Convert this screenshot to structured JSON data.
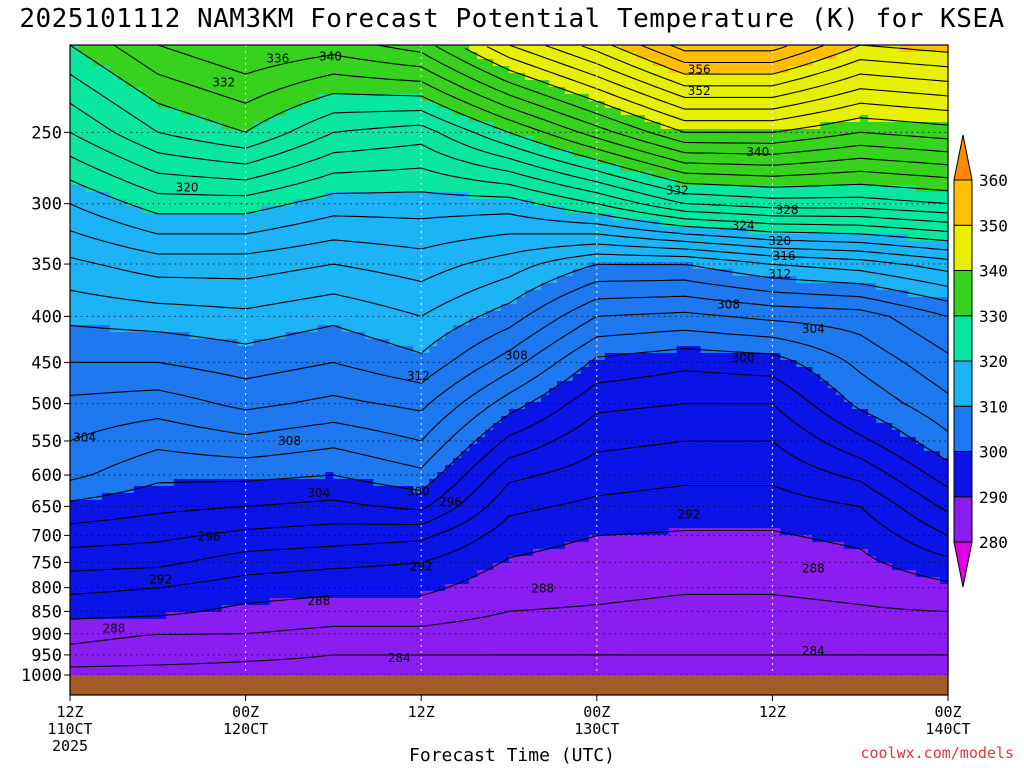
{
  "chart_data": {
    "type": "heatmap",
    "title": "2025101112 NAM3KM Forecast Potential Temperature (K) for KSEA",
    "xlabel": "Forecast Time (UTC)",
    "ylabel": "",
    "y_axis": {
      "scale": "log",
      "reversed": true,
      "range": [
        200,
        1000
      ],
      "ticks": [
        250,
        300,
        350,
        400,
        450,
        500,
        550,
        600,
        650,
        700,
        750,
        800,
        850,
        900,
        950,
        1000
      ]
    },
    "x_axis": {
      "range_hours": [
        0,
        60
      ],
      "ticks": [
        {
          "hour": 0,
          "line1": "12Z",
          "line2": "110CT",
          "line3": "2025"
        },
        {
          "hour": 12,
          "line1": "00Z",
          "line2": "120CT",
          "line3": ""
        },
        {
          "hour": 24,
          "line1": "12Z",
          "line2": "",
          "line3": ""
        },
        {
          "hour": 36,
          "line1": "00Z",
          "line2": "130CT",
          "line3": ""
        },
        {
          "hour": 48,
          "line1": "12Z",
          "line2": "",
          "line3": ""
        },
        {
          "hour": 60,
          "line1": "00Z",
          "line2": "140CT",
          "line3": ""
        }
      ]
    },
    "grid": true,
    "colorbar": {
      "levels": [
        280,
        290,
        300,
        310,
        320,
        330,
        340,
        350,
        360
      ],
      "bands": [
        {
          "min": 270,
          "max": 280,
          "color": "#e000e8"
        },
        {
          "min": 280,
          "max": 290,
          "color": "#8a1df0"
        },
        {
          "min": 290,
          "max": 300,
          "color": "#0a14e6"
        },
        {
          "min": 300,
          "max": 310,
          "color": "#1e78f0"
        },
        {
          "min": 310,
          "max": 320,
          "color": "#1cb4f4"
        },
        {
          "min": 320,
          "max": 330,
          "color": "#08e6a0"
        },
        {
          "min": 330,
          "max": 340,
          "color": "#36d21e"
        },
        {
          "min": 340,
          "max": 350,
          "color": "#e8f000"
        },
        {
          "min": 350,
          "max": 360,
          "color": "#ffbf00"
        },
        {
          "min": 360,
          "max": 370,
          "color": "#ff8c00"
        }
      ]
    },
    "contour_interval": 2,
    "profiles": [
      {
        "hour": 0,
        "p": [
          1000,
          950,
          900,
          850,
          800,
          750,
          700,
          650,
          600,
          550,
          500,
          450,
          400,
          350,
          300,
          250,
          200
        ],
        "theta": [
          285,
          287.5,
          288.5,
          290.8,
          292.5,
          294.8,
          297,
          299.5,
          302.5,
          304,
          305.5,
          308,
          310.5,
          313.5,
          318,
          324,
          330
        ]
      },
      {
        "hour": 6,
        "p": [
          1000,
          950,
          900,
          850,
          800,
          750,
          700,
          650,
          600,
          550,
          500,
          450,
          400,
          350,
          300,
          250,
          200
        ],
        "theta": [
          285,
          287,
          288,
          290.5,
          292,
          294.5,
          296.5,
          298.5,
          300.5,
          302.5,
          305,
          308,
          311,
          315,
          321,
          328,
          334
        ]
      },
      {
        "hour": 12,
        "p": [
          1000,
          950,
          900,
          850,
          800,
          750,
          700,
          650,
          600,
          550,
          500,
          450,
          400,
          350,
          300,
          250,
          200
        ],
        "theta": [
          285,
          286.5,
          288,
          289.5,
          291,
          293,
          295.5,
          298,
          300.5,
          303.5,
          306.5,
          309,
          311.5,
          315,
          321,
          330,
          336
        ]
      },
      {
        "hour": 18,
        "p": [
          1000,
          950,
          900,
          850,
          800,
          750,
          700,
          650,
          600,
          550,
          500,
          450,
          400,
          350,
          300,
          250,
          200
        ],
        "theta": [
          285,
          286,
          287.5,
          289,
          290.5,
          292.5,
          295,
          297.5,
          300,
          302.5,
          305.5,
          308,
          310.5,
          314,
          319,
          326,
          335
        ]
      },
      {
        "hour": 24,
        "p": [
          1000,
          950,
          900,
          850,
          800,
          750,
          700,
          650,
          600,
          550,
          500,
          450,
          400,
          350,
          300,
          250,
          200
        ],
        "theta": [
          285,
          286,
          287.5,
          289,
          290.5,
          292,
          294.5,
          298.5,
          301.5,
          304,
          306.5,
          309.5,
          312,
          315,
          319,
          325,
          337
        ]
      },
      {
        "hour": 30,
        "p": [
          1000,
          950,
          900,
          850,
          800,
          750,
          700,
          650,
          600,
          550,
          500,
          450,
          400,
          350,
          300,
          250,
          200
        ],
        "theta": [
          285,
          286,
          287,
          288,
          288.8,
          289.8,
          291,
          292.5,
          294.5,
          297.5,
          301,
          305,
          309,
          313,
          319,
          330,
          344
        ]
      },
      {
        "hour": 36,
        "p": [
          1000,
          950,
          900,
          850,
          800,
          750,
          700,
          650,
          600,
          550,
          500,
          450,
          400,
          350,
          300,
          250,
          200
        ],
        "theta": [
          285,
          286,
          287,
          287.8,
          288.5,
          289,
          290,
          291.5,
          293,
          294.5,
          296.5,
          299.5,
          304,
          310,
          322,
          335,
          349
        ]
      },
      {
        "hour": 42,
        "p": [
          1000,
          950,
          900,
          850,
          800,
          750,
          700,
          650,
          600,
          550,
          500,
          450,
          400,
          350,
          300,
          250,
          200
        ],
        "theta": [
          285.5,
          286,
          286.8,
          287.5,
          288.2,
          288.8,
          289.8,
          291,
          292.5,
          294,
          296,
          298.5,
          303.5,
          310,
          326,
          340,
          355
        ]
      },
      {
        "hour": 48,
        "p": [
          1000,
          950,
          900,
          850,
          800,
          750,
          700,
          650,
          600,
          550,
          500,
          450,
          400,
          350,
          300,
          250,
          200
        ],
        "theta": [
          285.5,
          286,
          286.8,
          287.5,
          288.2,
          288.8,
          289.8,
          291,
          292.5,
          294,
          296,
          299,
          304.5,
          312,
          327,
          340,
          355
        ]
      },
      {
        "hour": 54,
        "p": [
          1000,
          950,
          900,
          850,
          800,
          750,
          700,
          650,
          600,
          550,
          500,
          450,
          400,
          350,
          300,
          250,
          200
        ],
        "theta": [
          285,
          286,
          287,
          287.8,
          288.5,
          289.5,
          290.5,
          292,
          294.5,
          297.5,
          300.5,
          302.5,
          305,
          313,
          327,
          338,
          350
        ]
      },
      {
        "hour": 60,
        "p": [
          1000,
          950,
          900,
          850,
          800,
          750,
          700,
          650,
          600,
          550,
          500,
          450,
          400,
          350,
          300,
          250,
          200
        ],
        "theta": [
          285,
          286,
          287,
          288,
          289.5,
          291.5,
          294,
          296.5,
          299,
          301.5,
          303.5,
          305.5,
          308,
          315,
          328,
          339,
          351
        ]
      }
    ],
    "contour_labels": [
      {
        "text": "336",
        "hour": 14.2,
        "p": 207
      },
      {
        "text": "340",
        "hour": 17.8,
        "p": 206
      },
      {
        "text": "332",
        "hour": 10.5,
        "p": 220
      },
      {
        "text": "356",
        "hour": 43.0,
        "p": 213
      },
      {
        "text": "352",
        "hour": 43.0,
        "p": 225
      },
      {
        "text": "340",
        "hour": 47.0,
        "p": 263
      },
      {
        "text": "332",
        "hour": 41.5,
        "p": 290
      },
      {
        "text": "328",
        "hour": 49.0,
        "p": 305
      },
      {
        "text": "324",
        "hour": 46.0,
        "p": 317
      },
      {
        "text": "320",
        "hour": 48.5,
        "p": 330
      },
      {
        "text": "316",
        "hour": 48.8,
        "p": 343
      },
      {
        "text": "312",
        "hour": 48.5,
        "p": 359
      },
      {
        "text": "320",
        "hour": 8.0,
        "p": 288
      },
      {
        "text": "308",
        "hour": 45.0,
        "p": 388
      },
      {
        "text": "304",
        "hour": 50.8,
        "p": 413
      },
      {
        "text": "308",
        "hour": 30.5,
        "p": 442
      },
      {
        "text": "300",
        "hour": 46.0,
        "p": 445
      },
      {
        "text": "312",
        "hour": 23.8,
        "p": 466
      },
      {
        "text": "304",
        "hour": 1.0,
        "p": 545
      },
      {
        "text": "308",
        "hour": 15.0,
        "p": 550
      },
      {
        "text": "304",
        "hour": 17.0,
        "p": 628
      },
      {
        "text": "300",
        "hour": 23.8,
        "p": 626
      },
      {
        "text": "296",
        "hour": 26.0,
        "p": 643
      },
      {
        "text": "292",
        "hour": 42.3,
        "p": 664
      },
      {
        "text": "296",
        "hour": 9.5,
        "p": 702
      },
      {
        "text": "292",
        "hour": 24.0,
        "p": 758
      },
      {
        "text": "288",
        "hour": 50.8,
        "p": 762
      },
      {
        "text": "292",
        "hour": 6.2,
        "p": 784
      },
      {
        "text": "288",
        "hour": 32.3,
        "p": 802
      },
      {
        "text": "288",
        "hour": 17.0,
        "p": 828
      },
      {
        "text": "288",
        "hour": 3.0,
        "p": 888
      },
      {
        "text": "284",
        "hour": 22.5,
        "p": 957
      },
      {
        "text": "284",
        "hour": 50.8,
        "p": 940
      }
    ]
  },
  "credit": "coolwx.com/models"
}
